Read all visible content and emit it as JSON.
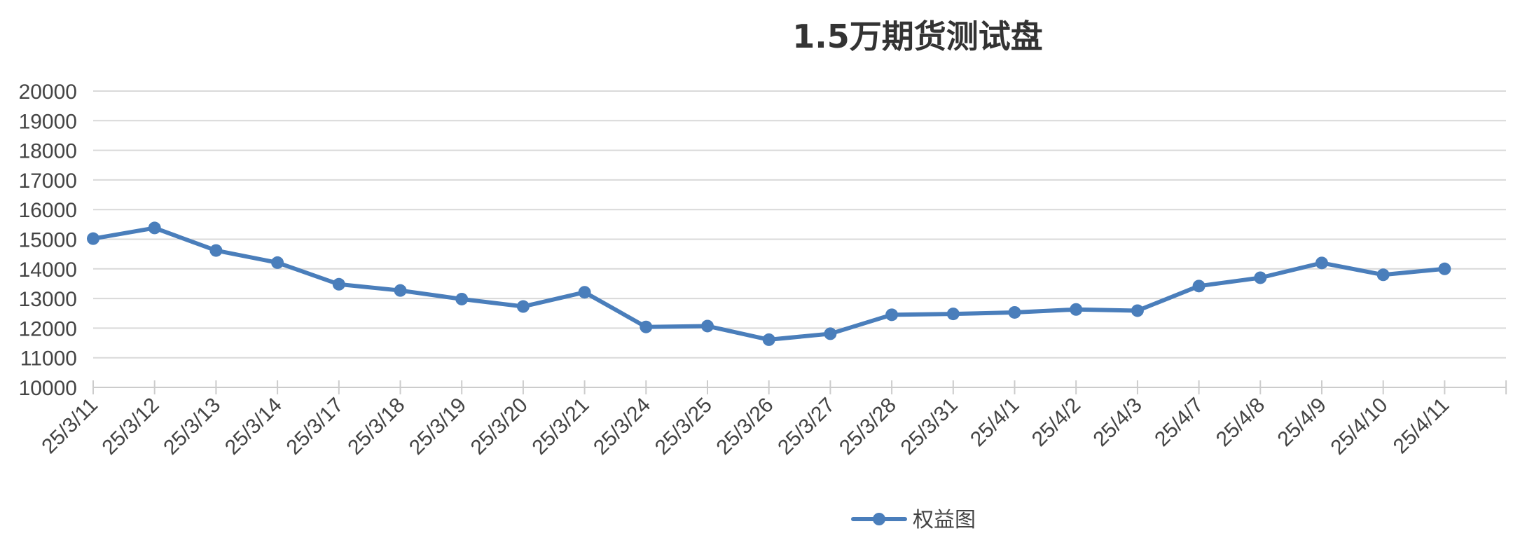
{
  "chart_data": {
    "type": "line",
    "title": "1.5万期货测试盘",
    "xlabel": "",
    "ylabel": "",
    "categories": [
      "25/3/11",
      "25/3/12",
      "25/3/13",
      "25/3/14",
      "25/3/17",
      "25/3/18",
      "25/3/19",
      "25/3/20",
      "25/3/21",
      "25/3/24",
      "25/3/25",
      "25/3/26",
      "25/3/27",
      "25/3/28",
      "25/3/31",
      "25/4/1",
      "25/4/2",
      "25/4/3",
      "25/4/7",
      "25/4/8",
      "25/4/9",
      "25/4/10",
      "25/4/11"
    ],
    "series": [
      {
        "name": "权益图",
        "color": "#4a7ebb",
        "values": [
          15020,
          15380,
          14620,
          14210,
          13480,
          13270,
          12980,
          12730,
          13210,
          12040,
          12070,
          11610,
          11810,
          12450,
          12480,
          12530,
          12630,
          12590,
          13420,
          13700,
          14200,
          13800,
          14000
        ]
      }
    ],
    "ylim": [
      10000,
      20000
    ],
    "yticks": [
      10000,
      11000,
      12000,
      13000,
      14000,
      15000,
      16000,
      17000,
      18000,
      19000,
      20000
    ],
    "grid": true,
    "legend_position": "bottom"
  }
}
